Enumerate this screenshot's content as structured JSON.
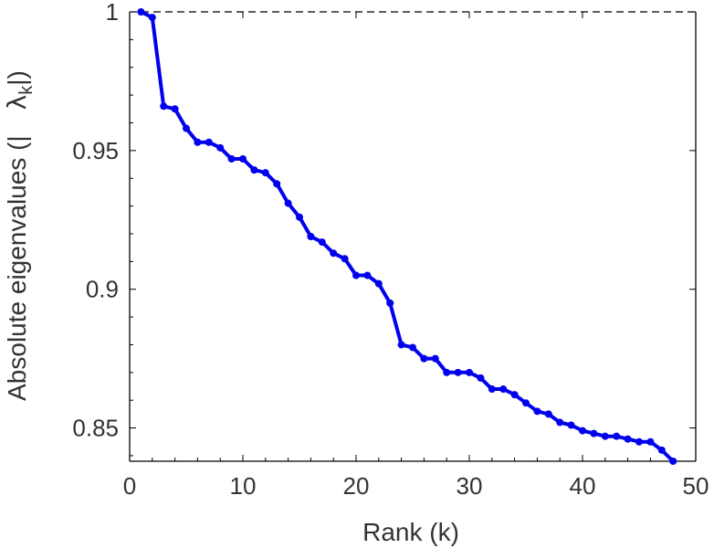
{
  "chart_data": {
    "type": "line",
    "title": "",
    "xlabel": "Rank (k)",
    "ylabel_parts": [
      "Absolute eigenvalues (|",
      "λ",
      "k",
      "|)"
    ],
    "xlim": [
      0,
      50
    ],
    "ylim": [
      0.838,
      1.0
    ],
    "xticks": [
      0,
      10,
      20,
      30,
      40,
      50
    ],
    "xtick_labels": [
      "0",
      "10",
      "20",
      "30",
      "40",
      "50"
    ],
    "yticks": [
      0.85,
      0.9,
      0.95,
      1.0
    ],
    "ytick_labels": [
      "0.85",
      "0.9",
      "0.95",
      "1"
    ],
    "reference_line": {
      "y": 1.0,
      "style": "dashed",
      "color": "#000000"
    },
    "grid": false,
    "series": [
      {
        "color": "#0000ee",
        "marker": "circle",
        "x": [
          1,
          2,
          3,
          4,
          5,
          6,
          7,
          8,
          9,
          10,
          11,
          12,
          13,
          14,
          15,
          16,
          17,
          18,
          19,
          20,
          21,
          22,
          23,
          24,
          25,
          26,
          27,
          28,
          29,
          30,
          31,
          32,
          33,
          34,
          35,
          36,
          37,
          38,
          39,
          40,
          41,
          42,
          43,
          44,
          45,
          46,
          47,
          48
        ],
        "y": [
          1.0,
          0.998,
          0.966,
          0.965,
          0.958,
          0.953,
          0.953,
          0.951,
          0.947,
          0.947,
          0.943,
          0.942,
          0.938,
          0.931,
          0.926,
          0.919,
          0.917,
          0.913,
          0.911,
          0.905,
          0.905,
          0.902,
          0.895,
          0.88,
          0.879,
          0.875,
          0.875,
          0.87,
          0.87,
          0.87,
          0.868,
          0.864,
          0.864,
          0.862,
          0.859,
          0.856,
          0.855,
          0.852,
          0.851,
          0.849,
          0.848,
          0.847,
          0.847,
          0.846,
          0.845,
          0.845,
          0.842,
          0.838
        ]
      }
    ]
  }
}
